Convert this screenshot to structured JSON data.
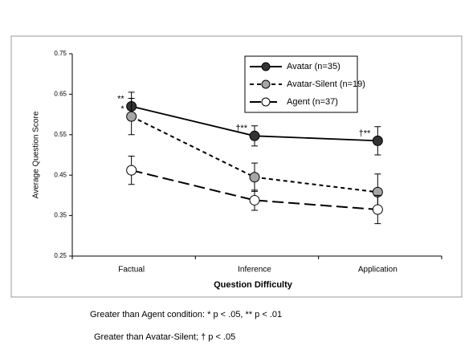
{
  "chart_data": {
    "type": "line",
    "x_label": "Question Difficulty",
    "y_label": "Average Question Score",
    "categories": [
      "Factual",
      "Inference",
      "Application"
    ],
    "ylim": [
      0.25,
      0.75
    ],
    "yticks": [
      0.25,
      0.35,
      0.45,
      0.55,
      0.65,
      0.75
    ],
    "legend": "top-right",
    "series": [
      {
        "name": "Avatar (n=35)",
        "color": "#000000",
        "marker_fill": "#333333",
        "dash": "solid",
        "values": [
          0.62,
          0.547,
          0.535
        ],
        "errors": [
          0.035,
          0.025,
          0.035
        ],
        "annotations": [
          "**",
          "†**",
          "†**"
        ]
      },
      {
        "name": "Avatar-Silent (n=19)",
        "color": "#000000",
        "marker_fill": "#a6a6a6",
        "dash": "short",
        "values": [
          0.595,
          0.445,
          0.408
        ],
        "errors": [
          0.045,
          0.035,
          0.045
        ],
        "annotations": [
          "*",
          null,
          null
        ]
      },
      {
        "name": "Agent (n=37)",
        "color": "#000000",
        "marker_fill": "#ffffff",
        "dash": "long",
        "values": [
          0.462,
          0.388,
          0.365
        ],
        "errors": [
          0.035,
          0.025,
          0.035
        ],
        "annotations": [
          null,
          null,
          null
        ]
      }
    ],
    "notes": [
      "Greater than Agent condition: * p < .05, ** p < .01",
      "Greater than Avatar-Silent; † p < .05"
    ]
  }
}
